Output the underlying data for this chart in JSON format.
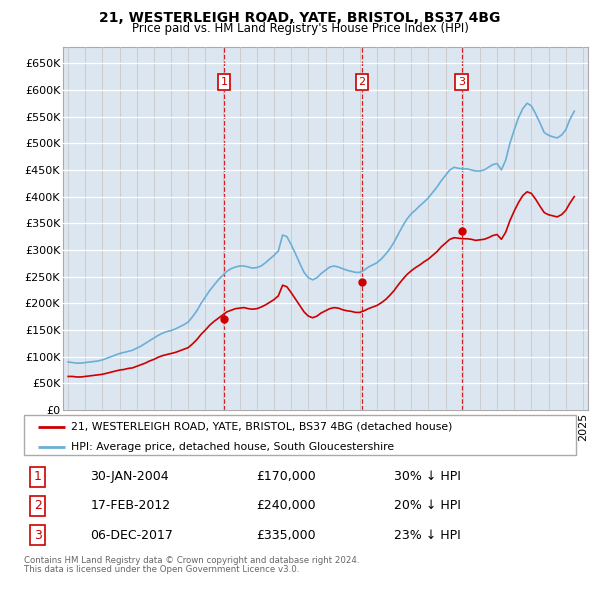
{
  "title": "21, WESTERLEIGH ROAD, YATE, BRISTOL, BS37 4BG",
  "subtitle": "Price paid vs. HM Land Registry's House Price Index (HPI)",
  "transactions": [
    {
      "num": 1,
      "date": "2004-01-30",
      "price": 170000,
      "pct": "30% ↓ HPI"
    },
    {
      "num": 2,
      "date": "2012-02-17",
      "price": 240000,
      "pct": "20% ↓ HPI"
    },
    {
      "num": 3,
      "date": "2017-12-06",
      "price": 335000,
      "pct": "23% ↓ HPI"
    }
  ],
  "legend_line1": "21, WESTERLEIGH ROAD, YATE, BRISTOL, BS37 4BG (detached house)",
  "legend_line2": "HPI: Average price, detached house, South Gloucestershire",
  "footnote1": "Contains HM Land Registry data © Crown copyright and database right 2024.",
  "footnote2": "This data is licensed under the Open Government Licence v3.0.",
  "hpi_color": "#6baed6",
  "price_color": "#cc0000",
  "marker_box_color": "#cc0000",
  "background_color": "#dce6f1",
  "ylim": [
    0,
    680000
  ],
  "yticks": [
    0,
    50000,
    100000,
    150000,
    200000,
    250000,
    300000,
    350000,
    400000,
    450000,
    500000,
    550000,
    600000,
    650000
  ],
  "hpi_data_years": [
    1995.0,
    1995.25,
    1995.5,
    1995.75,
    1996.0,
    1996.25,
    1996.5,
    1996.75,
    1997.0,
    1997.25,
    1997.5,
    1997.75,
    1998.0,
    1998.25,
    1998.5,
    1998.75,
    1999.0,
    1999.25,
    1999.5,
    1999.75,
    2000.0,
    2000.25,
    2000.5,
    2000.75,
    2001.0,
    2001.25,
    2001.5,
    2001.75,
    2002.0,
    2002.25,
    2002.5,
    2002.75,
    2003.0,
    2003.25,
    2003.5,
    2003.75,
    2004.0,
    2004.25,
    2004.5,
    2004.75,
    2005.0,
    2005.25,
    2005.5,
    2005.75,
    2006.0,
    2006.25,
    2006.5,
    2006.75,
    2007.0,
    2007.25,
    2007.5,
    2007.75,
    2008.0,
    2008.25,
    2008.5,
    2008.75,
    2009.0,
    2009.25,
    2009.5,
    2009.75,
    2010.0,
    2010.25,
    2010.5,
    2010.75,
    2011.0,
    2011.25,
    2011.5,
    2011.75,
    2012.0,
    2012.25,
    2012.5,
    2012.75,
    2013.0,
    2013.25,
    2013.5,
    2013.75,
    2014.0,
    2014.25,
    2014.5,
    2014.75,
    2015.0,
    2015.25,
    2015.5,
    2015.75,
    2016.0,
    2016.25,
    2016.5,
    2016.75,
    2017.0,
    2017.25,
    2017.5,
    2017.75,
    2018.0,
    2018.25,
    2018.5,
    2018.75,
    2019.0,
    2019.25,
    2019.5,
    2019.75,
    2020.0,
    2020.25,
    2020.5,
    2020.75,
    2021.0,
    2021.25,
    2021.5,
    2021.75,
    2022.0,
    2022.25,
    2022.5,
    2022.75,
    2023.0,
    2023.25,
    2023.5,
    2023.75,
    2024.0,
    2024.25,
    2024.5
  ],
  "hpi_data_values": [
    90000,
    89000,
    88000,
    88000,
    89000,
    90000,
    91000,
    92000,
    94000,
    97000,
    100000,
    103000,
    106000,
    108000,
    110000,
    112000,
    116000,
    120000,
    125000,
    130000,
    135000,
    140000,
    144000,
    147000,
    149000,
    152000,
    156000,
    160000,
    165000,
    175000,
    186000,
    200000,
    212000,
    224000,
    234000,
    244000,
    252000,
    260000,
    265000,
    268000,
    270000,
    270000,
    268000,
    266000,
    267000,
    270000,
    276000,
    283000,
    290000,
    298000,
    328000,
    325000,
    310000,
    293000,
    275000,
    258000,
    248000,
    244000,
    248000,
    256000,
    262000,
    268000,
    270000,
    268000,
    265000,
    262000,
    260000,
    258000,
    258000,
    262000,
    268000,
    272000,
    276000,
    283000,
    292000,
    302000,
    315000,
    330000,
    345000,
    358000,
    368000,
    375000,
    383000,
    390000,
    398000,
    408000,
    418000,
    430000,
    440000,
    450000,
    455000,
    453000,
    452000,
    452000,
    450000,
    448000,
    448000,
    450000,
    455000,
    460000,
    462000,
    450000,
    468000,
    500000,
    525000,
    548000,
    565000,
    575000,
    570000,
    555000,
    538000,
    520000,
    515000,
    512000,
    510000,
    515000,
    525000,
    545000,
    560000
  ],
  "pp_data_years": [
    1995.0,
    1995.25,
    1995.5,
    1995.75,
    1996.0,
    1996.25,
    1996.5,
    1996.75,
    1997.0,
    1997.25,
    1997.5,
    1997.75,
    1998.0,
    1998.25,
    1998.5,
    1998.75,
    1999.0,
    1999.25,
    1999.5,
    1999.75,
    2000.0,
    2000.25,
    2000.5,
    2000.75,
    2001.0,
    2001.25,
    2001.5,
    2001.75,
    2002.0,
    2002.25,
    2002.5,
    2002.75,
    2003.0,
    2003.25,
    2003.5,
    2003.75,
    2004.0,
    2004.25,
    2004.5,
    2004.75,
    2005.0,
    2005.25,
    2005.5,
    2005.75,
    2006.0,
    2006.25,
    2006.5,
    2006.75,
    2007.0,
    2007.25,
    2007.5,
    2007.75,
    2008.0,
    2008.25,
    2008.5,
    2008.75,
    2009.0,
    2009.25,
    2009.5,
    2009.75,
    2010.0,
    2010.25,
    2010.5,
    2010.75,
    2011.0,
    2011.25,
    2011.5,
    2011.75,
    2012.0,
    2012.25,
    2012.5,
    2012.75,
    2013.0,
    2013.25,
    2013.5,
    2013.75,
    2014.0,
    2014.25,
    2014.5,
    2014.75,
    2015.0,
    2015.25,
    2015.5,
    2015.75,
    2016.0,
    2016.25,
    2016.5,
    2016.75,
    2017.0,
    2017.25,
    2017.5,
    2017.75,
    2018.0,
    2018.25,
    2018.5,
    2018.75,
    2019.0,
    2019.25,
    2019.5,
    2019.75,
    2020.0,
    2020.25,
    2020.5,
    2020.75,
    2021.0,
    2021.25,
    2021.5,
    2021.75,
    2022.0,
    2022.25,
    2022.5,
    2022.75,
    2023.0,
    2023.25,
    2023.5,
    2023.75,
    2024.0,
    2024.25,
    2024.5
  ],
  "pp_data_values": [
    63000,
    63000,
    62000,
    62000,
    63000,
    64000,
    65000,
    66000,
    67000,
    69000,
    71000,
    73000,
    75000,
    76000,
    78000,
    79000,
    82000,
    85000,
    88000,
    92000,
    95000,
    99000,
    102000,
    104000,
    106000,
    108000,
    111000,
    114000,
    117000,
    124000,
    132000,
    142000,
    150000,
    159000,
    166000,
    172000,
    178000,
    184000,
    187000,
    190000,
    191000,
    192000,
    190000,
    189000,
    190000,
    193000,
    197000,
    202000,
    207000,
    214000,
    234000,
    231000,
    220000,
    208000,
    196000,
    184000,
    176000,
    173000,
    176000,
    182000,
    186000,
    190000,
    192000,
    191000,
    188000,
    186000,
    185000,
    183000,
    183000,
    186000,
    190000,
    193000,
    196000,
    201000,
    207000,
    215000,
    224000,
    235000,
    245000,
    254000,
    261000,
    267000,
    272000,
    278000,
    283000,
    290000,
    297000,
    306000,
    313000,
    320000,
    323000,
    322000,
    321000,
    321000,
    320000,
    318000,
    319000,
    320000,
    323000,
    327000,
    329000,
    320000,
    333000,
    355000,
    373000,
    389000,
    402000,
    409000,
    406000,
    395000,
    382000,
    370000,
    366000,
    364000,
    362000,
    366000,
    374000,
    388000,
    400000
  ]
}
